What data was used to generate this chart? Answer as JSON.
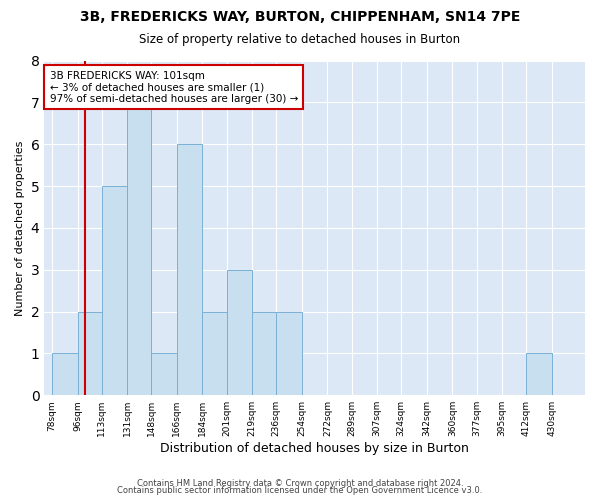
{
  "title": "3B, FREDERICKS WAY, BURTON, CHIPPENHAM, SN14 7PE",
  "subtitle": "Size of property relative to detached houses in Burton",
  "xlabel": "Distribution of detached houses by size in Burton",
  "ylabel": "Number of detached properties",
  "bin_labels": [
    "78sqm",
    "96sqm",
    "113sqm",
    "131sqm",
    "148sqm",
    "166sqm",
    "184sqm",
    "201sqm",
    "219sqm",
    "236sqm",
    "254sqm",
    "272sqm",
    "289sqm",
    "307sqm",
    "324sqm",
    "342sqm",
    "360sqm",
    "377sqm",
    "395sqm",
    "412sqm",
    "430sqm"
  ],
  "bin_edges": [
    78,
    96,
    113,
    131,
    148,
    166,
    184,
    201,
    219,
    236,
    254,
    272,
    289,
    307,
    324,
    342,
    360,
    377,
    395,
    412,
    430
  ],
  "bar_heights": [
    1,
    2,
    5,
    7,
    1,
    6,
    2,
    3,
    2,
    2,
    0,
    0,
    0,
    0,
    0,
    0,
    0,
    0,
    0,
    1,
    0
  ],
  "bar_color": "#c8dff0",
  "bar_edgecolor": "#7ab0d4",
  "vline_x": 101,
  "vline_color": "#cc0000",
  "ylim": [
    0,
    8
  ],
  "yticks": [
    0,
    1,
    2,
    3,
    4,
    5,
    6,
    7,
    8
  ],
  "annotation_text": "3B FREDERICKS WAY: 101sqm\n← 3% of detached houses are smaller (1)\n97% of semi-detached houses are larger (30) →",
  "annotation_box_color": "#ffffff",
  "annotation_box_edgecolor": "#cc0000",
  "footer_line1": "Contains HM Land Registry data © Crown copyright and database right 2024.",
  "footer_line2": "Contains public sector information licensed under the Open Government Licence v3.0.",
  "background_color": "#dce8f5"
}
